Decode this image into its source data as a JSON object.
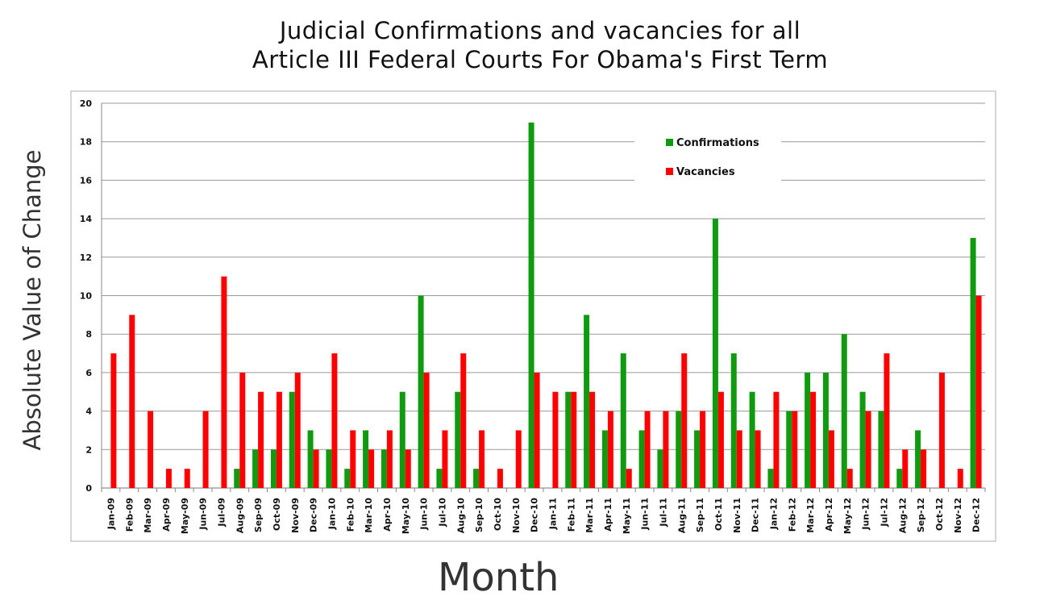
{
  "chart_data": {
    "type": "bar",
    "title_line1": "Judicial Confirmations and vacancies for all",
    "title_line2": "Article III Federal Courts For Obama's First Term",
    "xlabel": "Month",
    "ylabel": "Absolute Value of Change",
    "ylim": [
      0,
      20
    ],
    "yticks": [
      0,
      2,
      4,
      6,
      8,
      10,
      12,
      14,
      16,
      18,
      20
    ],
    "grid": true,
    "legend_position": "top-right",
    "categories": [
      "Jan-09",
      "Feb-09",
      "Mar-09",
      "Apr-09",
      "May-09",
      "Jun-09",
      "Jul-09",
      "Aug-09",
      "Sep-09",
      "Oct-09",
      "Nov-09",
      "Dec-09",
      "Jan-10",
      "Feb-10",
      "Mar-10",
      "Apr-10",
      "May-10",
      "Jun-10",
      "Jul-10",
      "Aug-10",
      "Sep-10",
      "Oct-10",
      "Nov-10",
      "Dec-10",
      "Jan-11",
      "Feb-11",
      "Mar-11",
      "Apr-11",
      "May-11",
      "Jun-11",
      "Jul-11",
      "Aug-11",
      "Sep-11",
      "Oct-11",
      "Nov-11",
      "Dec-11",
      "Jan-12",
      "Feb-12",
      "Mar-12",
      "Apr-12",
      "May-12",
      "Jun-12",
      "Jul-12",
      "Aug-12",
      "Sep-12",
      "Oct-12",
      "Nov-12",
      "Dec-12"
    ],
    "series": [
      {
        "name": "Confirmations",
        "color": "#0f9a0f",
        "values": [
          0,
          0,
          0,
          0,
          0,
          0,
          0,
          1,
          2,
          2,
          5,
          3,
          2,
          1,
          3,
          2,
          5,
          10,
          1,
          5,
          1,
          0,
          0,
          19,
          0,
          5,
          9,
          3,
          7,
          3,
          2,
          4,
          3,
          14,
          7,
          5,
          1,
          4,
          6,
          6,
          8,
          5,
          4,
          1,
          3,
          0,
          0,
          13
        ]
      },
      {
        "name": "Vacancies",
        "color": "#ff0000",
        "values": [
          7,
          9,
          4,
          1,
          1,
          4,
          11,
          6,
          5,
          5,
          6,
          2,
          7,
          3,
          2,
          3,
          2,
          6,
          3,
          7,
          3,
          1,
          3,
          6,
          5,
          5,
          5,
          4,
          1,
          4,
          4,
          7,
          4,
          5,
          3,
          3,
          5,
          4,
          5,
          3,
          1,
          4,
          7,
          2,
          2,
          6,
          1,
          10
        ]
      }
    ]
  }
}
